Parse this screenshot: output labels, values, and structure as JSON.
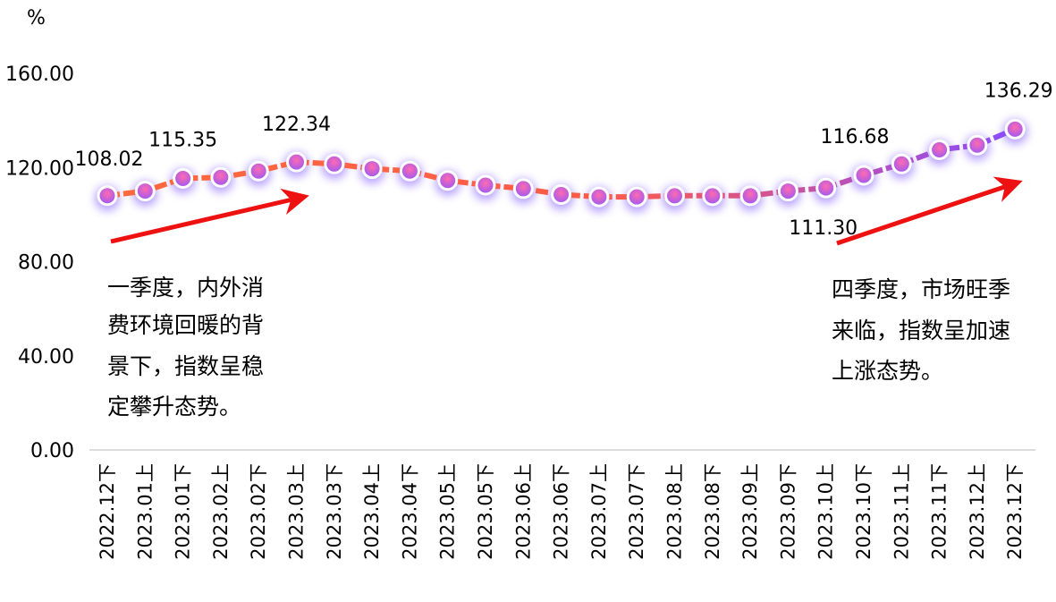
{
  "chart_data": {
    "type": "line",
    "unit": "%",
    "ylim": [
      0,
      160
    ],
    "yticks": [
      "0.00",
      "40.00",
      "80.00",
      "120.00",
      "160.00"
    ],
    "categories": [
      "2022.12下",
      "2023.01上",
      "2023.01下",
      "2023.02上",
      "2023.02下",
      "2023.03上",
      "2023.03下",
      "2023.04上",
      "2023.04下",
      "2023.05上",
      "2023.05下",
      "2023.06上",
      "2023.06下",
      "2023.07上",
      "2023.07下",
      "2023.08上",
      "2023.08下",
      "2023.09上",
      "2023.09下",
      "2023.10上",
      "2023.10下",
      "2023.11上",
      "2023.11下",
      "2023.12上",
      "2023.12下"
    ],
    "series": [
      {
        "values": [
          108.02,
          110.0,
          115.35,
          115.8,
          118.5,
          122.34,
          121.5,
          119.5,
          118.5,
          114.5,
          112.5,
          111.0,
          108.5,
          107.5,
          107.5,
          108.0,
          108.0,
          108.0,
          110.0,
          111.3,
          116.68,
          121.5,
          127.5,
          129.5,
          136.29
        ]
      }
    ],
    "data_labels": [
      {
        "index": 0,
        "text": "108.02"
      },
      {
        "index": 2,
        "text": "115.35"
      },
      {
        "index": 5,
        "text": "122.34"
      },
      {
        "index": 19,
        "text": "111.30"
      },
      {
        "index": 20,
        "text": "116.68"
      },
      {
        "index": 24,
        "text": "136.29"
      }
    ],
    "annotations": [
      {
        "lines": [
          "一季度，内外消",
          "费环境回暖的背",
          "景下，指数呈稳",
          "定攀升态势。"
        ]
      },
      {
        "lines": [
          "四季度，市场旺季",
          "来临，指数呈加速",
          "上涨态势。"
        ]
      }
    ],
    "colors": {
      "line_start": "#ff6a3d",
      "line_end": "#8a4bff",
      "marker": "#c060ee",
      "arrow": "#ee1111",
      "axis": "#d0d0d0"
    }
  }
}
